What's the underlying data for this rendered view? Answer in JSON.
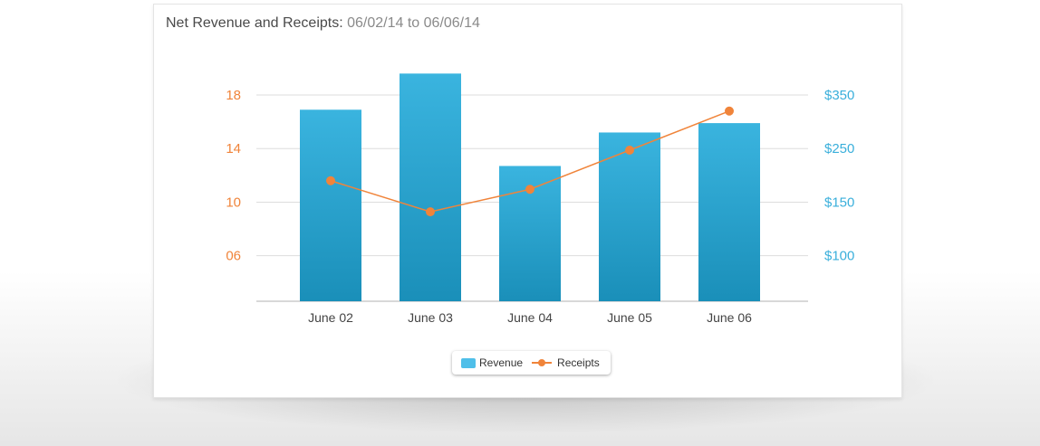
{
  "title": {
    "main": "Net Revenue and Receipts:",
    "range": "06/02/14 to 06/06/14"
  },
  "colors": {
    "revenue": "#3aafdb",
    "receipts": "#f0843a",
    "left_axis": "#f0843a",
    "right_axis": "#3aafdb",
    "grid": "#dddddd"
  },
  "legend": {
    "revenue_label": "Revenue",
    "receipts_label": "Receipts"
  },
  "chart_data": {
    "type": "bar",
    "categories": [
      "June 02",
      "June 03",
      "June 04",
      "June 05",
      "June 06"
    ],
    "series": [
      {
        "name": "Revenue",
        "type": "bar",
        "axis": "left",
        "values": [
          16.9,
          19.6,
          12.7,
          15.2,
          15.9
        ]
      },
      {
        "name": "Receipts",
        "type": "line",
        "axis": "right",
        "values": [
          190,
          141,
          174,
          247,
          320
        ]
      }
    ],
    "left_axis": {
      "ticks": [
        6,
        10,
        14,
        18
      ],
      "tick_labels": [
        "06",
        "10",
        "14",
        "18"
      ],
      "ylim": [
        2.6,
        18
      ]
    },
    "right_axis": {
      "tick_values": [
        100,
        150,
        250,
        350
      ],
      "tick_labels": [
        "$100",
        "$150",
        "$250",
        "$350"
      ]
    },
    "grid": true,
    "legend_position": "bottom-center"
  }
}
